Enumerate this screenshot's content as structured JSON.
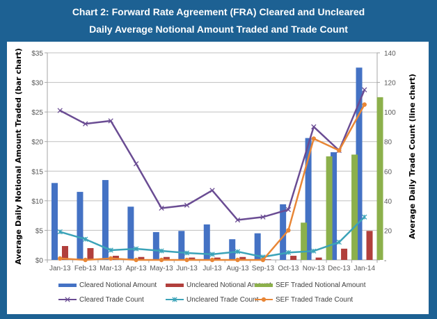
{
  "header": {
    "title_line1": "Chart 2: Forward Rate Agreement (FRA) Cleared and Uncleared",
    "title_line2": "Daily Average Notional Amount Traded and Trade Count"
  },
  "colors": {
    "frame": "#1D6193",
    "cleared_notional": "#4472C4",
    "uncleared_notional": "#B13F3C",
    "sef_notional": "#8CB04B",
    "cleared_count": "#6A4C93",
    "uncleared_count": "#3BA3B8",
    "sef_count": "#E88636",
    "grid": "#BFBFBF"
  },
  "chart_data": {
    "type": "bar",
    "title": "Chart 2: Forward Rate Agreement (FRA) Cleared and Uncleared Daily Average Notional Amount Traded and Trade Count",
    "categories": [
      "Jan-13",
      "Feb-13",
      "Mar-13",
      "Apr-13",
      "May-13",
      "Jun-13",
      "Jul-13",
      "Aug-13",
      "Sep-13",
      "Oct-13",
      "Nov-13",
      "Dec-13",
      "Jan-14"
    ],
    "ylabel": "Average Daily Notional Amount Traded (bar chart)",
    "y2label": "Average Daily Trade Count (line chart)",
    "xlabel": "",
    "ylim": [
      0,
      35
    ],
    "y2lim": [
      0,
      140
    ],
    "yticks": [
      "$0",
      "$5",
      "$10",
      "$15",
      "$20",
      "$25",
      "$30",
      "$35"
    ],
    "y2ticks": [
      "-",
      "20",
      "40",
      "60",
      "80",
      "100",
      "120",
      "140"
    ],
    "grid": true,
    "legend_position": "bottom",
    "bar_series": [
      {
        "name": "Cleared Notional Amount",
        "values": [
          13.0,
          11.5,
          13.5,
          9.0,
          4.7,
          4.9,
          6.0,
          3.5,
          4.5,
          9.4,
          20.6,
          18.2,
          32.5
        ]
      },
      {
        "name": "Uncleared Notional Amount",
        "values": [
          2.35,
          2.0,
          0.7,
          0.5,
          0.5,
          0.4,
          0.4,
          0.5,
          0.1,
          0.7,
          0.4,
          1.9,
          4.9
        ]
      },
      {
        "name": "SEF Traded Notional Amount",
        "values": [
          0,
          0,
          0,
          0,
          0,
          0,
          0,
          0,
          0,
          6.3,
          17.5,
          17.8,
          27.5
        ]
      }
    ],
    "line_series": [
      {
        "name": "Cleared Trade Count",
        "axis": "right",
        "marker": "x",
        "values": [
          101,
          92,
          94,
          65,
          35,
          37,
          47,
          27,
          29,
          34,
          90,
          74,
          115
        ]
      },
      {
        "name": "Uncleared Trade Count",
        "axis": "right",
        "marker": "asterisk",
        "values": [
          19,
          14,
          6.6,
          7.5,
          6.1,
          4.7,
          3.8,
          5.6,
          2,
          5,
          6,
          12,
          29
        ]
      },
      {
        "name": "SEF Traded Trade Count",
        "axis": "right",
        "marker": "circle",
        "values": [
          1,
          0,
          1,
          0,
          0,
          0,
          0,
          0,
          0,
          20,
          82,
          74,
          105
        ]
      }
    ]
  }
}
